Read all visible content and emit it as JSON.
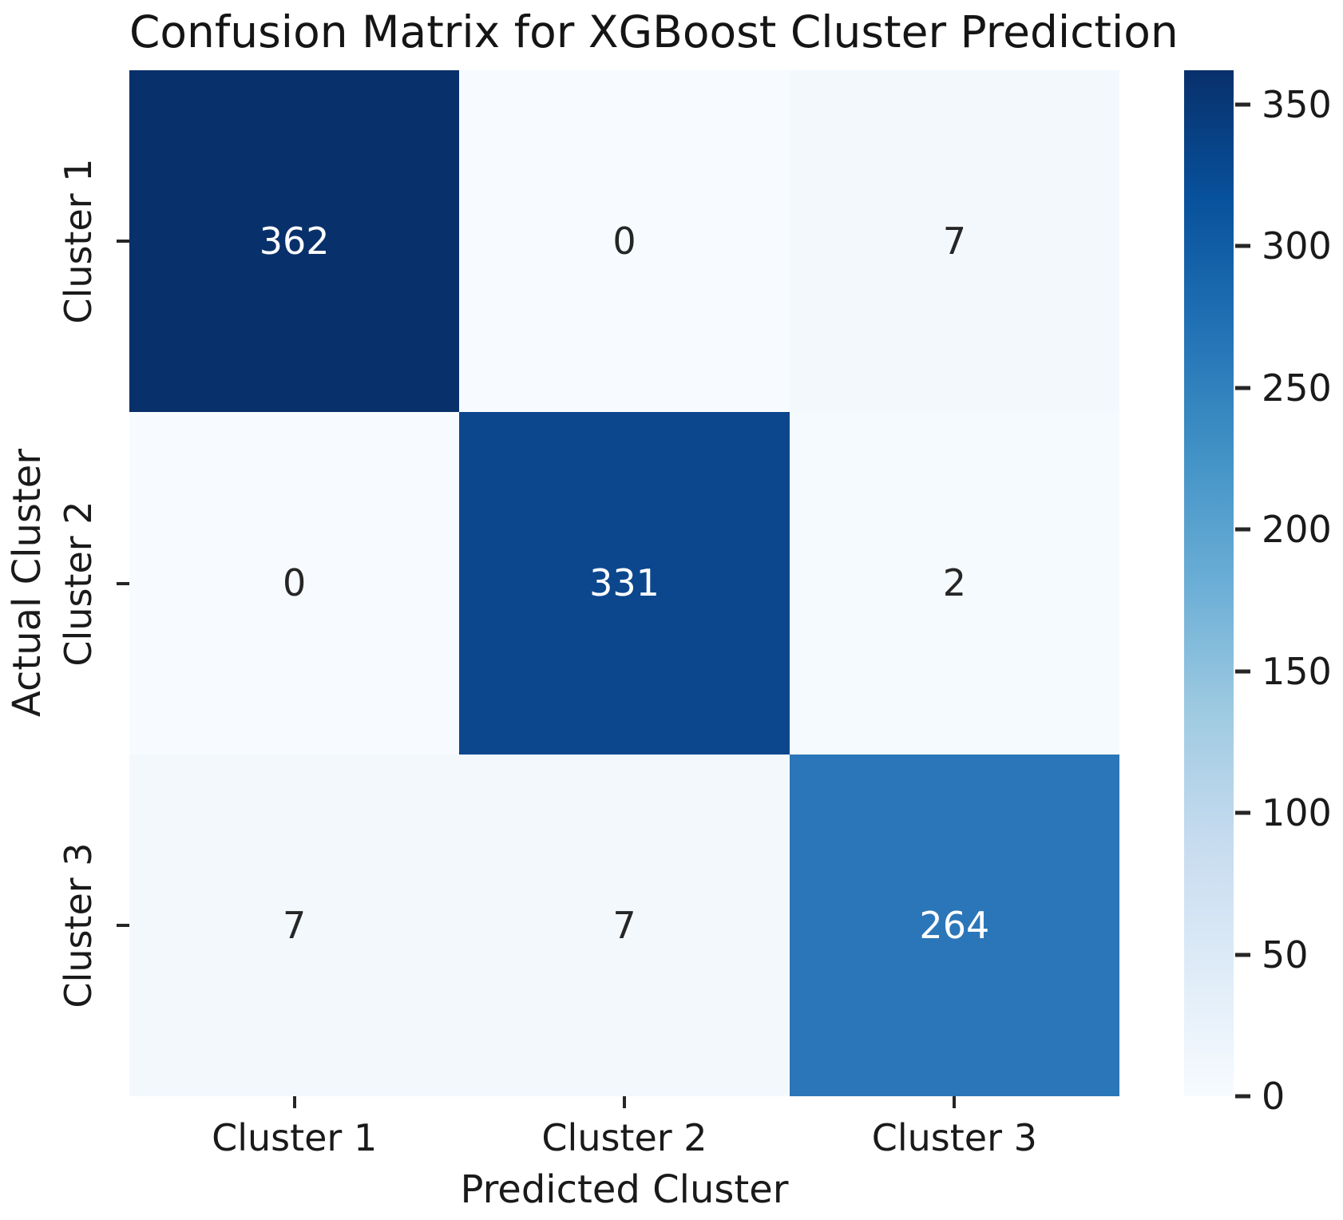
{
  "chart_data": {
    "type": "heatmap",
    "title": "Confusion Matrix for XGBoost Cluster Prediction",
    "xlabel": "Predicted Cluster",
    "ylabel": "Actual Cluster",
    "x_tick_labels": [
      "Cluster 1",
      "Cluster 2",
      "Cluster 3"
    ],
    "y_tick_labels": [
      "Cluster 1",
      "Cluster 2",
      "Cluster 3"
    ],
    "matrix": [
      [
        362,
        0,
        7
      ],
      [
        0,
        331,
        2
      ],
      [
        7,
        7,
        264
      ]
    ],
    "cell_colors": [
      [
        "#08306b",
        "#f7fbff",
        "#f3f8fd"
      ],
      [
        "#f7fbff",
        "#0c478e",
        "#f5fafe"
      ],
      [
        "#f3f8fd",
        "#f3f8fd",
        "#2b76b8"
      ]
    ],
    "cell_text_colors": [
      [
        "#ffffff",
        "#262626",
        "#262626"
      ],
      [
        "#262626",
        "#ffffff",
        "#262626"
      ],
      [
        "#262626",
        "#262626",
        "#ffffff"
      ]
    ],
    "colormap": "Blues",
    "colorbar": {
      "vmin": 0,
      "vmax": 362,
      "ticks": [
        350,
        300,
        250,
        200,
        150,
        100,
        50,
        0
      ],
      "gradient_stops": [
        "#f7fbff",
        "#deebf7",
        "#c6dbef",
        "#9ecae1",
        "#6baed6",
        "#4292c6",
        "#2171b5",
        "#08519c",
        "#08306b"
      ]
    },
    "grid": false,
    "legend": false
  },
  "text_color": "#1a1a1a",
  "background_color": "#ffffff"
}
